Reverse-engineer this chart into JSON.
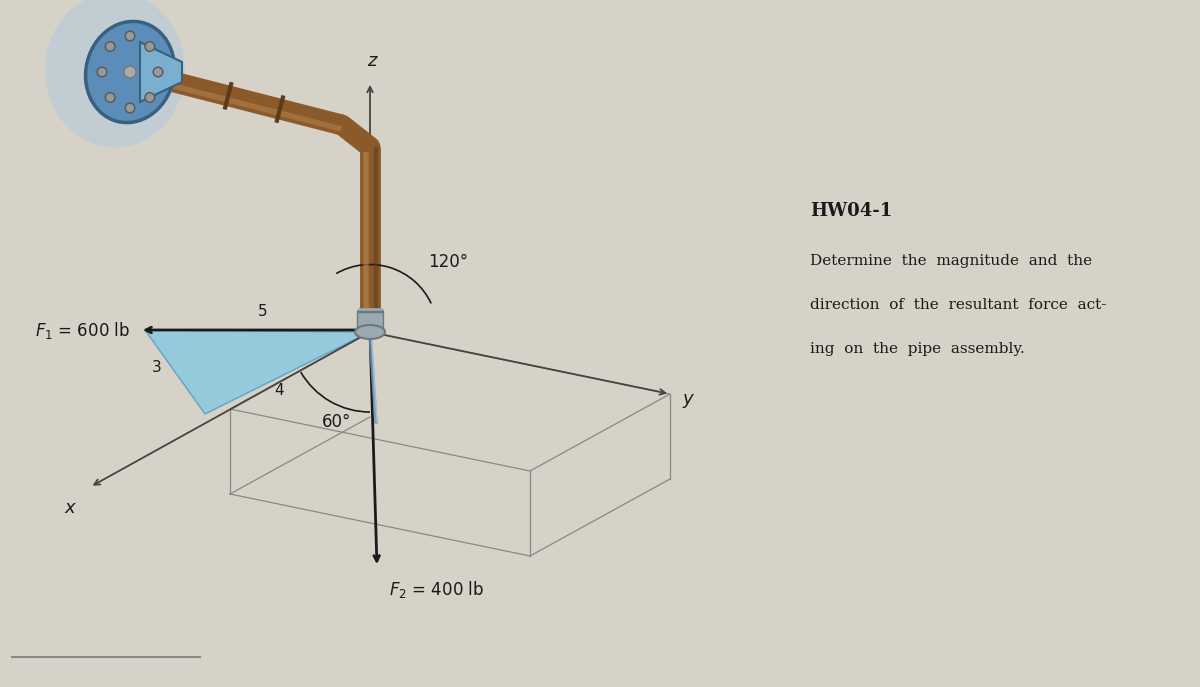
{
  "bg_color": "#d6d2c8",
  "title": "HW04-1",
  "desc1": "Determine  the  magnitude  and  the",
  "desc2": "direction  of  the  resultant  force  act-",
  "desc3": "ing  on  the  pipe  assembly.",
  "F1_label": "$F_1$ = 600 lb",
  "F2_label": "$F_2$ = 400 lb",
  "angle1_label": "120°",
  "angle2_label": "60°",
  "num3": "3",
  "num4": "4",
  "num5": "5",
  "lbl_x": "x",
  "lbl_y": "y",
  "lbl_z": "z",
  "tri_color": "#7EC8E3",
  "tri_edge": "#4A90C4",
  "pipe_brown": "#8B5A2B",
  "pipe_hi": "#B8864E",
  "pipe_dark": "#5C3A1A",
  "pipe_silver": "#9AA8B0",
  "pipe_silver_dark": "#6A7880",
  "flange_blue": "#5B8DB8",
  "flange_light": "#7AAFD0",
  "flange_dark": "#3A6080",
  "flange_glow": "#A8C8E0",
  "arrow_col": "#1a1a1a",
  "text_col": "#1a1a1a",
  "axis_col": "#444444",
  "box_col": "#888888",
  "ox": 3.7,
  "oy": 3.55
}
